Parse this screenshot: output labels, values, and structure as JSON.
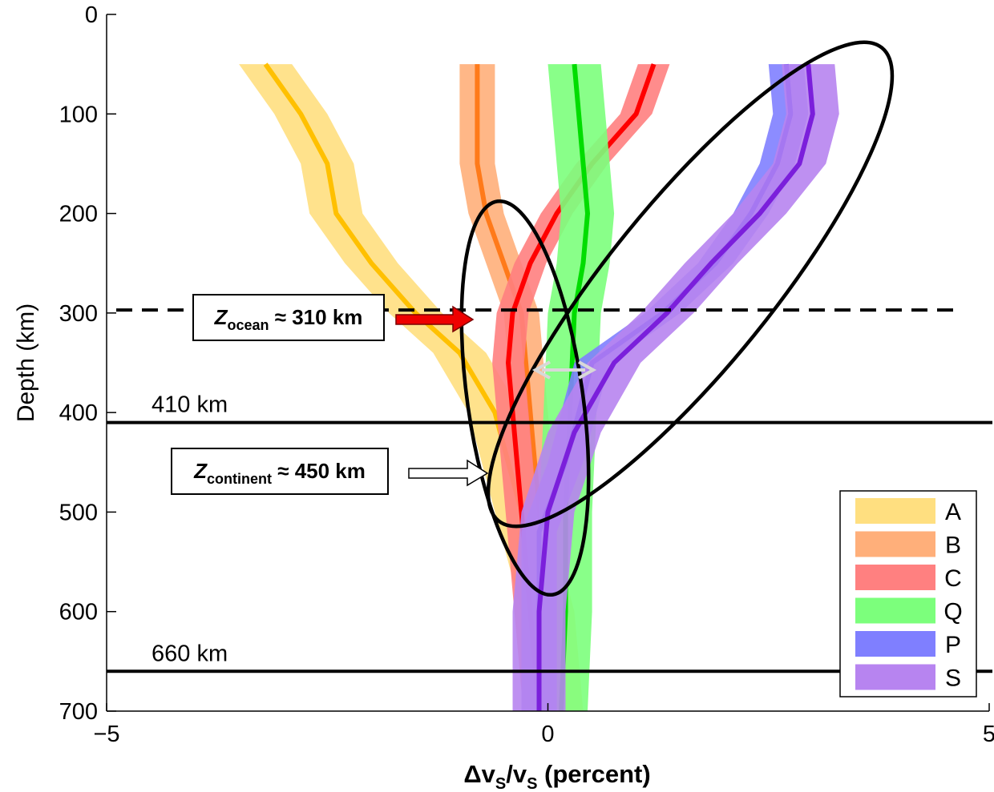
{
  "chart_data": {
    "type": "line",
    "xlabel": "Δv_S/v_S (percent)",
    "ylabel": "Depth (km)",
    "xlim": [
      -5,
      5
    ],
    "ylim": [
      0,
      700
    ],
    "y_reversed": true,
    "xticks": [
      "−5",
      "0",
      "5"
    ],
    "yticks": [
      "0",
      "100",
      "200",
      "300",
      "400",
      "500",
      "600",
      "700"
    ],
    "grid": false,
    "legend_position": "bottom-right",
    "series": [
      {
        "name": "A",
        "color": "#FFC000",
        "band_color": "#FFDF80",
        "x": [
          -3.2,
          -2.8,
          -2.5,
          -2.4,
          -2.0,
          -1.5,
          -1.0,
          -0.6,
          -0.3,
          0.0,
          0.1
        ],
        "y": [
          50,
          100,
          150,
          200,
          250,
          300,
          340,
          400,
          500,
          600,
          700
        ],
        "half_width": 0.3
      },
      {
        "name": "B",
        "color": "#FF7A1A",
        "band_color": "#FFAF7A",
        "x": [
          -0.8,
          -0.8,
          -0.8,
          -0.7,
          -0.5,
          -0.3,
          -0.2,
          -0.1,
          0.0,
          0.0
        ],
        "y": [
          50,
          100,
          150,
          200,
          250,
          300,
          400,
          500,
          600,
          700
        ],
        "half_width": 0.2
      },
      {
        "name": "C",
        "color": "#FF0000",
        "band_color": "#FF8080",
        "x": [
          1.2,
          1.0,
          0.5,
          0.1,
          -0.2,
          -0.4,
          -0.45,
          -0.4,
          -0.3,
          -0.2,
          -0.1
        ],
        "y": [
          50,
          100,
          150,
          200,
          250,
          300,
          350,
          400,
          500,
          600,
          700
        ],
        "half_width": 0.18
      },
      {
        "name": "Q",
        "color": "#00DD00",
        "band_color": "#7CFF7C",
        "x": [
          0.3,
          0.35,
          0.4,
          0.45,
          0.4,
          0.3,
          0.25,
          0.2,
          0.2,
          0.15
        ],
        "y": [
          50,
          100,
          150,
          200,
          250,
          300,
          400,
          500,
          600,
          700
        ],
        "half_width": 0.3
      },
      {
        "name": "P",
        "color": "#0000FF",
        "band_color": "#7F7FFF",
        "x": [
          2.7,
          2.75,
          2.6,
          2.3,
          1.9,
          1.3,
          0.5,
          0.2,
          -0.1,
          -0.1,
          -0.1
        ],
        "y": [
          50,
          100,
          150,
          200,
          250,
          300,
          350,
          450,
          520,
          600,
          700
        ],
        "half_width": 0.2
      },
      {
        "name": "S",
        "color": "#7B1FDB",
        "band_color": "#B784F0",
        "x": [
          2.95,
          3.0,
          2.85,
          2.4,
          1.85,
          1.35,
          0.75,
          0.3,
          0.0,
          -0.1,
          -0.1
        ],
        "y": [
          50,
          100,
          150,
          200,
          250,
          300,
          350,
          420,
          500,
          600,
          700
        ],
        "half_width": 0.3
      }
    ],
    "reference_lines": [
      {
        "depth": 297,
        "style": "dashed"
      },
      {
        "depth": 410,
        "style": "solid",
        "label": "410 km"
      },
      {
        "depth": 660,
        "style": "solid",
        "label": "660 km"
      }
    ],
    "annotations": [
      {
        "sub": "ocean",
        "text": " ≈ 310 km",
        "arrow": "red"
      },
      {
        "sub": "continent",
        "text": " ≈ 450 km",
        "arrow": "white"
      }
    ]
  }
}
